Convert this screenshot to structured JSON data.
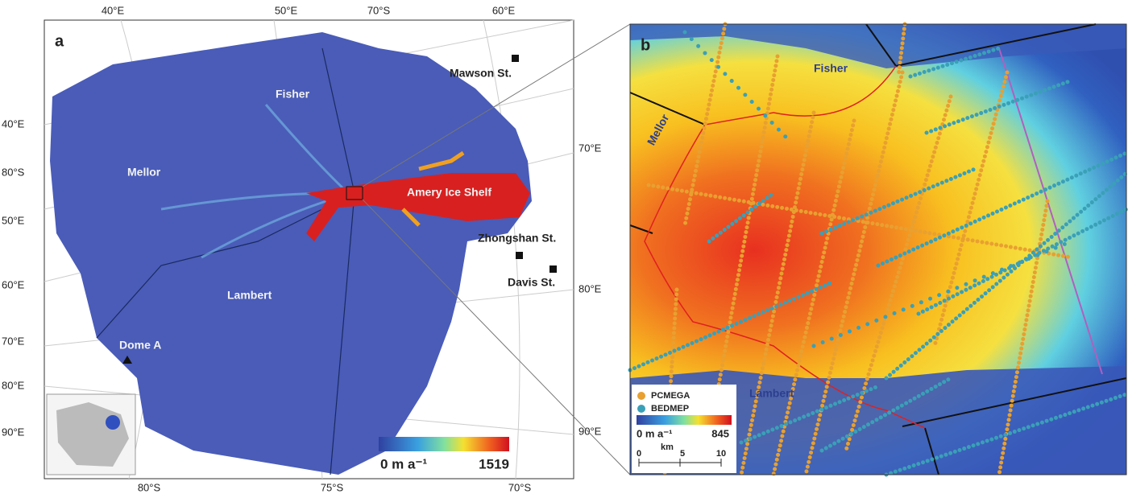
{
  "panel_a": {
    "label": "a",
    "top_labels": [
      "40°E",
      "50°E",
      "70°S",
      "60°E"
    ],
    "left_labels": [
      "40°E",
      "80°S",
      "50°E",
      "60°E",
      "70°E",
      "80°E",
      "90°E"
    ],
    "right_labels": [
      "70°E",
      "80°E",
      "90°E"
    ],
    "bottom_labels": [
      "80°S",
      "75°S",
      "70°S"
    ],
    "regions": [
      "Fisher",
      "Mellor",
      "Lambert",
      "Amery Ice Shelf",
      "Dome A"
    ],
    "stations": [
      "Mawson St.",
      "Zhongshan St.",
      "Davis St."
    ],
    "colorbar": {
      "min_label": "0 m a⁻¹",
      "max_label": "1519"
    }
  },
  "panel_b": {
    "label": "b",
    "regions": [
      "Fisher",
      "Mellor",
      "Lambert"
    ],
    "legend": [
      "PCMEGA",
      "BEDMEP"
    ],
    "colorbar": {
      "min_label": "0 m a⁻¹",
      "max_label": "845"
    },
    "scale": {
      "unit": "km",
      "ticks": [
        "0",
        "5",
        "10"
      ]
    }
  }
}
